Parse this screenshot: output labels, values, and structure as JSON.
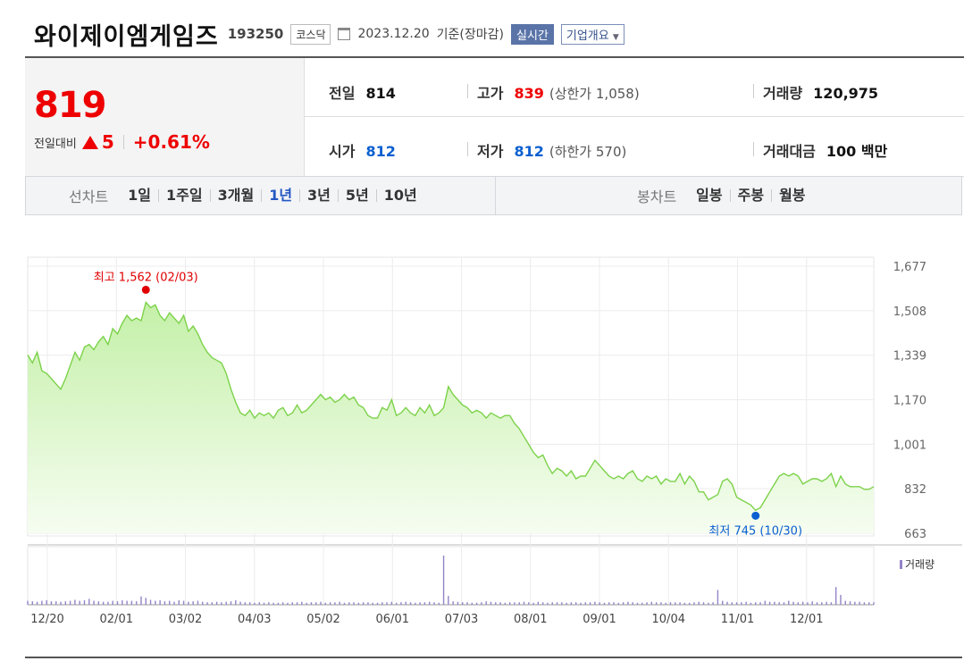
{
  "header": {
    "name": "와이제이엠게임즈",
    "code": "193250",
    "market": "코스닥",
    "date": "2023.12.20",
    "basis": "기준(장마감)",
    "realtime": "실시간",
    "company_info": "기업개요"
  },
  "quote": {
    "price": "819",
    "change_label": "전일대비",
    "change": "5",
    "change_pct": "+0.61%",
    "prev_label": "전일",
    "prev": "814",
    "high_label": "고가",
    "high": "839",
    "upper_limit": "(상한가 1,058)",
    "volume_label": "거래량",
    "volume": "120,975",
    "open_label": "시가",
    "open": "812",
    "low_label": "저가",
    "low": "812",
    "lower_limit": "(하한가 570)",
    "amount_label": "거래대금",
    "amount": "100 백만"
  },
  "tabs": {
    "line_label": "선차트",
    "line": [
      "1일",
      "1주일",
      "3개월",
      "1년",
      "3년",
      "5년",
      "10년"
    ],
    "line_active": 3,
    "candle_label": "봉차트",
    "candle": [
      "일봉",
      "주봉",
      "월봉"
    ]
  },
  "colors": {
    "up": "#e00000",
    "down": "#0a5fd0",
    "line": "#7cd24a",
    "fill_top": "#c4f0a8",
    "fill_bottom": "#f6fdf1",
    "volume": "#9384c8"
  },
  "chart_data": {
    "type": "area",
    "y_ticks": [
      "1,677",
      "1,508",
      "1,339",
      "1,170",
      "1,001",
      "832",
      "663"
    ],
    "ylim": [
      663,
      1677
    ],
    "x_ticks": [
      "12/20",
      "02/01",
      "03/02",
      "04/03",
      "05/02",
      "06/01",
      "07/03",
      "08/01",
      "09/01",
      "10/04",
      "11/01",
      "12/01"
    ],
    "max_label": "최고 1,562 (02/03)",
    "min_label": "최저 745 (10/30)",
    "volume_label": "거래량",
    "series": [
      {
        "values": [
          1340,
          1310,
          1350,
          1280,
          1270,
          1250,
          1230,
          1210,
          1250,
          1300,
          1350,
          1320,
          1370,
          1380,
          1360,
          1390,
          1410,
          1380,
          1440,
          1420,
          1460,
          1490,
          1470,
          1480,
          1470,
          1540,
          1520,
          1530,
          1490,
          1470,
          1500,
          1480,
          1460,
          1490,
          1430,
          1450,
          1420,
          1380,
          1350,
          1330,
          1320,
          1310,
          1270,
          1210,
          1160,
          1120,
          1110,
          1130,
          1100,
          1120,
          1110,
          1120,
          1100,
          1130,
          1140,
          1110,
          1120,
          1150,
          1120,
          1130,
          1150,
          1170,
          1190,
          1170,
          1180,
          1160,
          1170,
          1190,
          1170,
          1180,
          1150,
          1140,
          1110,
          1100,
          1100,
          1140,
          1130,
          1170,
          1110,
          1120,
          1140,
          1120,
          1110,
          1140,
          1120,
          1150,
          1110,
          1120,
          1140,
          1220,
          1190,
          1170,
          1150,
          1140,
          1120,
          1130,
          1120,
          1100,
          1120,
          1110,
          1100,
          1110,
          1110,
          1080,
          1060,
          1030,
          1000,
          970,
          950,
          960,
          920,
          890,
          910,
          900,
          880,
          900,
          870,
          880,
          880,
          910,
          940,
          920,
          900,
          880,
          870,
          880,
          870,
          890,
          900,
          870,
          860,
          880,
          870,
          880,
          850,
          870,
          860,
          860,
          890,
          850,
          880,
          860,
          820,
          820,
          790,
          800,
          810,
          860,
          870,
          850,
          800,
          790,
          780,
          770,
          750,
          760,
          790,
          820,
          850,
          880,
          890,
          880,
          890,
          880,
          850,
          860,
          870,
          870,
          860,
          870,
          890,
          840,
          880,
          850,
          840,
          840,
          840,
          830,
          830,
          840
        ],
        "volume_scale": "relative",
        "volumes": [
          0.08,
          0.07,
          0.06,
          0.08,
          0.09,
          0.07,
          0.07,
          0.06,
          0.07,
          0.08,
          0.1,
          0.08,
          0.09,
          0.12,
          0.08,
          0.07,
          0.06,
          0.06,
          0.08,
          0.07,
          0.09,
          0.08,
          0.08,
          0.07,
          0.17,
          0.14,
          0.1,
          0.08,
          0.09,
          0.07,
          0.08,
          0.06,
          0.09,
          0.08,
          0.06,
          0.07,
          0.08,
          0.06,
          0.05,
          0.05,
          0.06,
          0.05,
          0.06,
          0.07,
          0.09,
          0.06,
          0.05,
          0.05,
          0.04,
          0.05,
          0.04,
          0.05,
          0.04,
          0.04,
          0.05,
          0.04,
          0.05,
          0.05,
          0.06,
          0.04,
          0.05,
          0.05,
          0.06,
          0.04,
          0.05,
          0.05,
          0.06,
          0.04,
          0.05,
          0.05,
          0.04,
          0.05,
          0.05,
          0.04,
          0.04,
          0.05,
          0.05,
          0.06,
          0.04,
          0.05,
          0.06,
          0.05,
          0.04,
          0.05,
          0.05,
          0.06,
          0.05,
          0.04,
          1.0,
          0.18,
          0.07,
          0.06,
          0.05,
          0.05,
          0.04,
          0.04,
          0.05,
          0.07,
          0.06,
          0.05,
          0.05,
          0.04,
          0.05,
          0.05,
          0.05,
          0.06,
          0.05,
          0.04,
          0.06,
          0.05,
          0.04,
          0.05,
          0.05,
          0.05,
          0.04,
          0.05,
          0.05,
          0.04,
          0.05,
          0.05,
          0.06,
          0.05,
          0.04,
          0.05,
          0.05,
          0.04,
          0.05,
          0.06,
          0.05,
          0.04,
          0.04,
          0.05,
          0.06,
          0.05,
          0.05,
          0.04,
          0.05,
          0.05,
          0.05,
          0.04,
          0.04,
          0.05,
          0.06,
          0.05,
          0.04,
          0.05,
          0.3,
          0.08,
          0.06,
          0.05,
          0.05,
          0.05,
          0.06,
          0.04,
          0.05,
          0.05,
          0.08,
          0.06,
          0.06,
          0.05,
          0.05,
          0.08,
          0.06,
          0.05,
          0.06,
          0.05,
          0.07,
          0.05,
          0.05,
          0.06,
          0.05,
          0.36,
          0.2,
          0.08,
          0.07,
          0.06,
          0.06,
          0.05,
          0.05,
          0.05
        ]
      }
    ]
  }
}
